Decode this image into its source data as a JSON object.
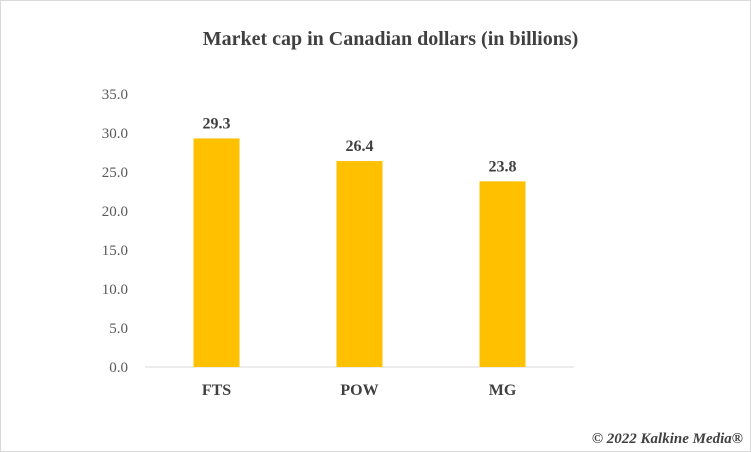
{
  "chart_data": {
    "type": "bar",
    "title": "Market cap in Canadian dollars (in billions)",
    "categories": [
      "FTS",
      "POW",
      "MG"
    ],
    "values": [
      29.3,
      26.4,
      23.8
    ],
    "data_labels": [
      "29.3",
      "26.4",
      "23.8"
    ],
    "ylim": [
      0,
      35
    ],
    "yticks": [
      "0.0",
      "5.0",
      "10.0",
      "15.0",
      "20.0",
      "25.0",
      "30.0",
      "35.0"
    ],
    "xlabel": "",
    "ylabel": "",
    "grid": false,
    "legend": "none",
    "bar_color": "#FFC000"
  },
  "footer": {
    "copyright": "© 2022 Kalkine Media®"
  }
}
